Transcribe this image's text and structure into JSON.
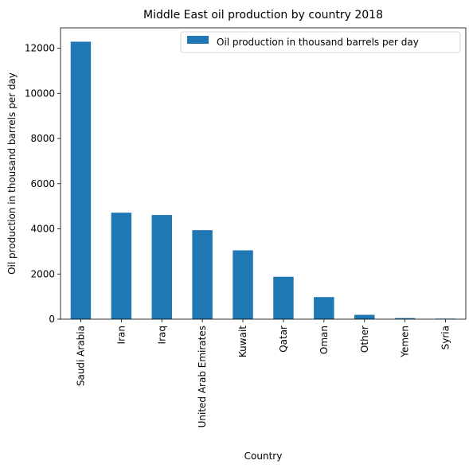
{
  "chart_data": {
    "type": "bar",
    "title": "Middle East oil production by country 2018",
    "xlabel": "Country",
    "ylabel": "Oil production in thousand barrels per day",
    "categories": [
      "Saudi Arabia",
      "Iran",
      "Iraq",
      "United Arab Emirates",
      "Kuwait",
      "Qatar",
      "Oman",
      "Other",
      "Yemen",
      "Syria"
    ],
    "series": [
      {
        "name": "Oil production in thousand barrels per day",
        "values": [
          12287,
          4715,
          4613,
          3942,
          3049,
          1879,
          978,
          192,
          48,
          24
        ],
        "color": "#1f77b4"
      }
    ],
    "ylim": [
      0,
      12900
    ],
    "yticks": [
      0,
      2000,
      4000,
      6000,
      8000,
      10000,
      12000
    ],
    "grid": false,
    "legend_position": "upper right"
  }
}
